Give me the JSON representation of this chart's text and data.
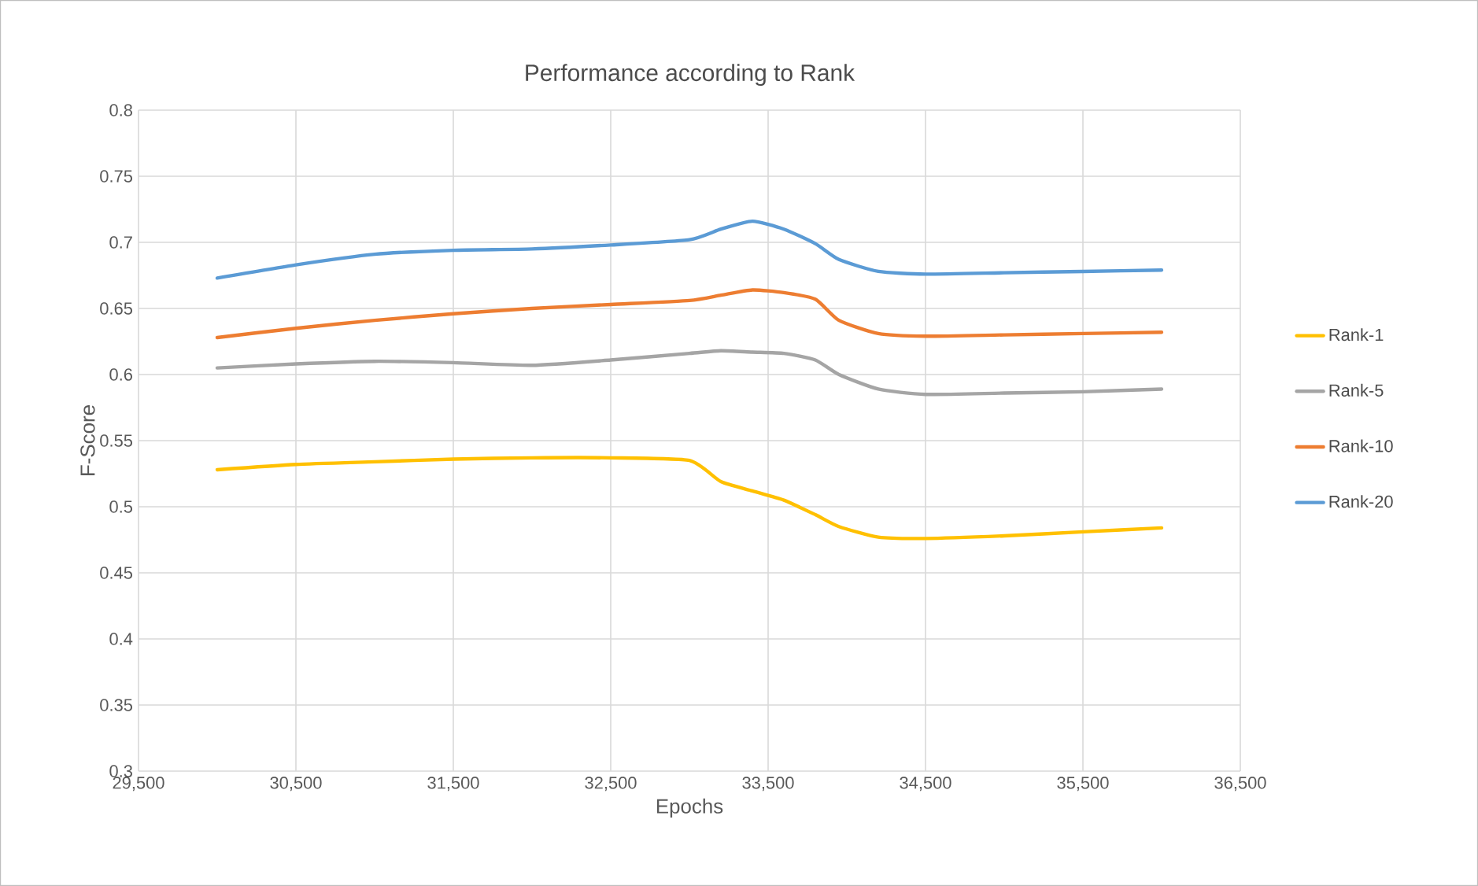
{
  "chart_data": {
    "type": "line",
    "title": "Performance according to Rank",
    "xlabel": "Epochs",
    "ylabel": "F-Score",
    "xlim": [
      29500,
      36500
    ],
    "ylim": [
      0.3,
      0.8
    ],
    "xticks": [
      {
        "value": 29500,
        "label": "29,500"
      },
      {
        "value": 30500,
        "label": "30,500"
      },
      {
        "value": 31500,
        "label": "31,500"
      },
      {
        "value": 32500,
        "label": "32,500"
      },
      {
        "value": 33500,
        "label": "33,500"
      },
      {
        "value": 34500,
        "label": "34,500"
      },
      {
        "value": 35500,
        "label": "35,500"
      },
      {
        "value": 36500,
        "label": "36,500"
      }
    ],
    "yticks": [
      0.3,
      0.35,
      0.4,
      0.45,
      0.5,
      0.55,
      0.6,
      0.65,
      0.7,
      0.75,
      0.8
    ],
    "grid": true,
    "legend": "right",
    "line_style": "solid",
    "x": [
      30000,
      30500,
      31000,
      31500,
      32000,
      32500,
      33000,
      33200,
      33400,
      33600,
      33800,
      33950,
      34200,
      34500,
      35000,
      35500,
      36000
    ],
    "series": [
      {
        "name": "Rank-1",
        "color": "#ffc000",
        "values": [
          0.528,
          0.532,
          0.534,
          0.536,
          0.537,
          0.537,
          0.535,
          0.519,
          0.512,
          0.505,
          0.494,
          0.485,
          0.477,
          0.476,
          0.478,
          0.481,
          0.484
        ]
      },
      {
        "name": "Rank-5",
        "color": "#a5a5a5",
        "values": [
          0.605,
          0.608,
          0.61,
          0.609,
          0.607,
          0.611,
          0.616,
          0.618,
          0.617,
          0.616,
          0.611,
          0.6,
          0.589,
          0.585,
          0.586,
          0.587,
          0.589
        ]
      },
      {
        "name": "Rank-10",
        "color": "#ed7d31",
        "values": [
          0.628,
          0.635,
          0.641,
          0.646,
          0.65,
          0.653,
          0.656,
          0.66,
          0.664,
          0.662,
          0.657,
          0.641,
          0.631,
          0.629,
          0.63,
          0.631,
          0.632
        ]
      },
      {
        "name": "Rank-20",
        "color": "#5b9bd5",
        "values": [
          0.673,
          0.683,
          0.691,
          0.694,
          0.695,
          0.698,
          0.702,
          0.71,
          0.716,
          0.71,
          0.699,
          0.687,
          0.678,
          0.676,
          0.677,
          0.678,
          0.679
        ]
      }
    ]
  }
}
